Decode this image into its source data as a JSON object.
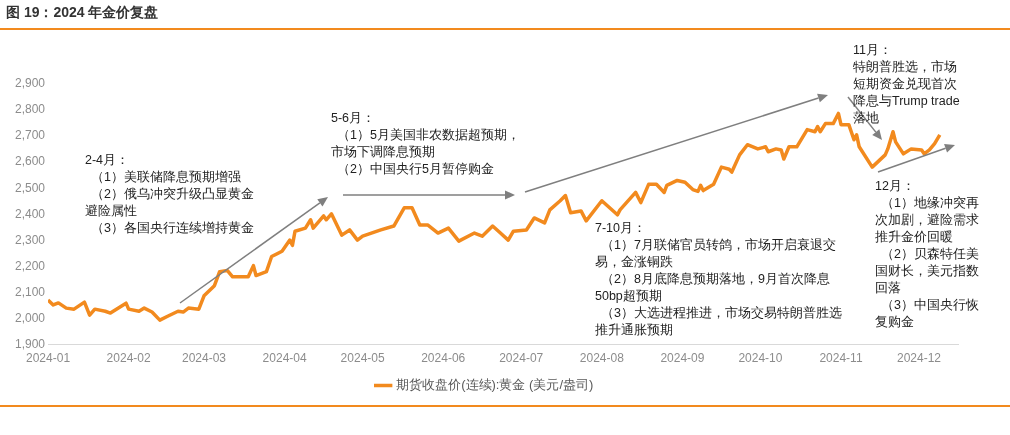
{
  "chart_data": {
    "type": "line",
    "title": "图 19：2024 年金价复盘",
    "x": [
      "2024-01-01",
      "2024-01-03",
      "2024-01-05",
      "2024-01-08",
      "2024-01-11",
      "2024-01-15",
      "2024-01-17",
      "2024-01-19",
      "2024-01-23",
      "2024-01-25",
      "2024-01-31",
      "2024-02-01",
      "2024-02-05",
      "2024-02-07",
      "2024-02-10",
      "2024-02-13",
      "2024-02-16",
      "2024-02-20",
      "2024-02-22",
      "2024-02-24",
      "2024-02-28",
      "2024-03-01",
      "2024-03-05",
      "2024-03-07",
      "2024-03-10",
      "2024-03-12",
      "2024-03-18",
      "2024-03-20",
      "2024-03-21",
      "2024-03-25",
      "2024-03-27",
      "2024-03-31",
      "2024-04-03",
      "2024-04-04",
      "2024-04-05",
      "2024-04-09",
      "2024-04-11",
      "2024-04-12",
      "2024-04-16",
      "2024-04-17",
      "2024-04-19",
      "2024-04-23",
      "2024-04-26",
      "2024-04-29",
      "2024-05-01",
      "2024-05-08",
      "2024-05-13",
      "2024-05-17",
      "2024-05-20",
      "2024-05-23",
      "2024-05-26",
      "2024-05-30",
      "2024-06-03",
      "2024-06-07",
      "2024-06-13",
      "2024-06-16",
      "2024-06-20",
      "2024-06-23",
      "2024-06-26",
      "2024-06-28",
      "2024-07-03",
      "2024-07-06",
      "2024-07-10",
      "2024-07-12",
      "2024-07-16",
      "2024-07-18",
      "2024-07-20",
      "2024-07-24",
      "2024-07-26",
      "2024-08-01",
      "2024-08-07",
      "2024-08-08",
      "2024-08-14",
      "2024-08-16",
      "2024-08-19",
      "2024-08-22",
      "2024-08-25",
      "2024-08-26",
      "2024-08-30",
      "2024-09-02",
      "2024-09-05",
      "2024-09-07",
      "2024-09-08",
      "2024-09-09",
      "2024-09-13",
      "2024-09-16",
      "2024-09-19",
      "2024-09-20",
      "2024-09-23",
      "2024-09-26",
      "2024-09-30",
      "2024-10-03",
      "2024-10-04",
      "2024-10-07",
      "2024-10-09",
      "2024-10-10",
      "2024-10-12",
      "2024-10-15",
      "2024-10-19",
      "2024-10-22",
      "2024-10-23",
      "2024-10-24",
      "2024-10-26",
      "2024-10-29",
      "2024-10-31",
      "2024-11-01",
      "2024-11-04",
      "2024-11-06",
      "2024-11-07",
      "2024-11-08",
      "2024-11-13",
      "2024-11-18",
      "2024-11-19",
      "2024-11-21",
      "2024-11-22",
      "2024-11-25",
      "2024-11-28",
      "2024-12-02",
      "2024-12-03",
      "2024-12-05",
      "2024-12-07",
      "2024-12-09"
    ],
    "series": [
      {
        "name": "期货收盘价(连续):黄金 (美元/盎司)",
        "color": "#f28a1e",
        "values": [
          2071,
          2052,
          2060,
          2040,
          2036,
          2063,
          2013,
          2036,
          2028,
          2021,
          2059,
          2036,
          2028,
          2040,
          2025,
          1994,
          2009,
          2028,
          2025,
          2040,
          2036,
          2087,
          2126,
          2180,
          2184,
          2160,
          2160,
          2203,
          2165,
          2180,
          2238,
          2258,
          2301,
          2281,
          2335,
          2347,
          2379,
          2347,
          2394,
          2379,
          2402,
          2320,
          2340,
          2301,
          2316,
          2340,
          2355,
          2425,
          2425,
          2359,
          2359,
          2328,
          2347,
          2297,
          2328,
          2316,
          2355,
          2328,
          2301,
          2335,
          2340,
          2386,
          2367,
          2417,
          2452,
          2472,
          2406,
          2413,
          2375,
          2452,
          2398,
          2417,
          2484,
          2445,
          2515,
          2515,
          2484,
          2511,
          2530,
          2523,
          2495,
          2488,
          2511,
          2491,
          2515,
          2581,
          2573,
          2562,
          2628,
          2667,
          2651,
          2659,
          2640,
          2651,
          2647,
          2612,
          2659,
          2659,
          2725,
          2717,
          2737,
          2717,
          2748,
          2748,
          2787,
          2744,
          2744,
          2686,
          2705,
          2659,
          2581,
          2628,
          2651,
          2717,
          2678,
          2632,
          2651,
          2647,
          2632,
          2647,
          2671,
          2705
        ]
      }
    ],
    "xlim": [
      "2024-01-01",
      "2024-12-16"
    ],
    "xticks": [
      {
        "value": "2024-01-01",
        "label": "2024-01"
      },
      {
        "value": "2024-02-01",
        "label": "2024-02"
      },
      {
        "value": "2024-03-01",
        "label": "2024-03"
      },
      {
        "value": "2024-04-01",
        "label": "2024-04"
      },
      {
        "value": "2024-05-01",
        "label": "2024-05"
      },
      {
        "value": "2024-06-01",
        "label": "2024-06"
      },
      {
        "value": "2024-07-01",
        "label": "2024-07"
      },
      {
        "value": "2024-08-01",
        "label": "2024-08"
      },
      {
        "value": "2024-09-01",
        "label": "2024-09"
      },
      {
        "value": "2024-10-01",
        "label": "2024-10"
      },
      {
        "value": "2024-11-01",
        "label": "2024-11"
      },
      {
        "value": "2024-12-01",
        "label": "2024-12"
      }
    ],
    "ylim": [
      1900,
      2900
    ],
    "yticks": [
      {
        "value": 1900,
        "label": "1,900"
      },
      {
        "value": 2000,
        "label": "2,000"
      },
      {
        "value": 2100,
        "label": "2,100"
      },
      {
        "value": 2200,
        "label": "2,200"
      },
      {
        "value": 2300,
        "label": "2,300"
      },
      {
        "value": 2400,
        "label": "2,400"
      },
      {
        "value": 2500,
        "label": "2,500"
      },
      {
        "value": 2600,
        "label": "2,600"
      },
      {
        "value": 2700,
        "label": "2,700"
      },
      {
        "value": 2800,
        "label": "2,800"
      },
      {
        "value": 2900,
        "label": "2,900"
      }
    ],
    "grid": false,
    "legend": "bottom",
    "marker": "none",
    "line_style": "solid",
    "annotations": [
      "2-4月：（1）美联储降息预期增强（2）俄乌冲突升级凸显黄金避险属性（3）各国央行连续增持黄金",
      "5-6月：（1）5月美国非农数据超预期，市场下调降息预期（2）中国央行5月暂停购金",
      "7-10月：（1）7月联储官员转鸽，市场开启衰退交易，金涨铜跌（2）8月底降息预期落地，9月首次降息50bp超预期（3）大选进程推进，市场交易特朗普胜选推升通胀预期",
      "11月：特朗普胜选，市场短期资金兑现首次降息与Trump trade落地",
      "12月：（1）地缘冲突再次加剧，避险需求推升金价回暖（2）贝森特任美国财长，美元指数回落（3）中国央行恢复购金"
    ]
  }
}
